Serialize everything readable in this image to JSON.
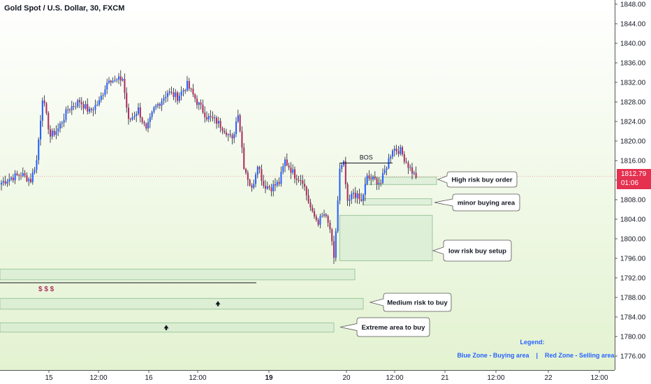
{
  "header": {
    "title": "Gold Spot / U.S. Dollar, 30, FXCM"
  },
  "price_tag": {
    "price": "1812.79",
    "countdown": "01:06"
  },
  "legend": {
    "title": "Legend:",
    "blue": "Blue Zone - Buying area",
    "separator": "|",
    "red": "Red Zone - Selling area"
  },
  "colors": {
    "bull": "#2962ff",
    "bear": "#b03060",
    "zone_stroke": "#9fc79f",
    "zone_fill": "#d2ead0",
    "accent": "#e53150"
  },
  "chart_data": {
    "type": "candlestick",
    "symbol": "Gold Spot / U.S. Dollar",
    "timeframe": "30",
    "source": "FXCM",
    "y_axis": {
      "ticks": [
        1848,
        1844,
        1840,
        1836,
        1832,
        1828,
        1824,
        1820,
        1816,
        1812,
        1808,
        1804,
        1800,
        1796,
        1792,
        1788,
        1784,
        1780,
        1776
      ],
      "tick_labels": [
        "1848.00",
        "1844.00",
        "1840.00",
        "1836.00",
        "1832.00",
        "1828.00",
        "1824.00",
        "1820.00",
        "1816.00",
        "1812.00",
        "1808.00",
        "1804.00",
        "1800.00",
        "1796.00",
        "1792.00",
        "1788.00",
        "1784.00",
        "1780.00",
        "1776.00"
      ],
      "range": [
        1773.5,
        1849.5
      ]
    },
    "x_axis": {
      "labels": [
        "15",
        "12:00",
        "16",
        "12:00",
        "19",
        "20",
        "12:00",
        "21",
        "12:00",
        "22",
        "12:00"
      ],
      "bold": [
        false,
        false,
        false,
        false,
        true,
        false,
        false,
        false,
        false,
        false,
        false
      ]
    },
    "current_price": 1812.79,
    "anchors": [
      {
        "t": 0,
        "p": 1811.5
      },
      {
        "t": 5,
        "p": 1812.5
      },
      {
        "t": 10,
        "p": 1813.2
      },
      {
        "t": 15,
        "p": 1812.0
      },
      {
        "t": 18,
        "p": 1816.0
      },
      {
        "t": 21,
        "p": 1829.0
      },
      {
        "t": 25,
        "p": 1821.0
      },
      {
        "t": 29,
        "p": 1822.5
      },
      {
        "t": 34,
        "p": 1826.5
      },
      {
        "t": 40,
        "p": 1828.2
      },
      {
        "t": 45,
        "p": 1826.0
      },
      {
        "t": 50,
        "p": 1828.0
      },
      {
        "t": 55,
        "p": 1833.0
      },
      {
        "t": 58,
        "p": 1832.2
      },
      {
        "t": 62,
        "p": 1832.8
      },
      {
        "t": 65,
        "p": 1824.0
      },
      {
        "t": 70,
        "p": 1826.5
      },
      {
        "t": 74,
        "p": 1822.0
      },
      {
        "t": 78,
        "p": 1826.5
      },
      {
        "t": 85,
        "p": 1830.0
      },
      {
        "t": 90,
        "p": 1829.0
      },
      {
        "t": 95,
        "p": 1831.5
      },
      {
        "t": 100,
        "p": 1828.0
      },
      {
        "t": 105,
        "p": 1825.0
      },
      {
        "t": 110,
        "p": 1824.0
      },
      {
        "t": 115,
        "p": 1822.0
      },
      {
        "t": 118,
        "p": 1820.0
      },
      {
        "t": 121,
        "p": 1826.0
      },
      {
        "t": 124,
        "p": 1815.0
      },
      {
        "t": 128,
        "p": 1810.0
      },
      {
        "t": 131,
        "p": 1815.5
      },
      {
        "t": 134,
        "p": 1811.0
      },
      {
        "t": 138,
        "p": 1810.5
      },
      {
        "t": 142,
        "p": 1811.5
      },
      {
        "t": 145,
        "p": 1816.0
      },
      {
        "t": 150,
        "p": 1813.0
      },
      {
        "t": 154,
        "p": 1812.0
      },
      {
        "t": 156,
        "p": 1809.0
      },
      {
        "t": 159,
        "p": 1805.0
      },
      {
        "t": 162,
        "p": 1803.5
      },
      {
        "t": 165,
        "p": 1805.0
      },
      {
        "t": 168,
        "p": 1802.0
      },
      {
        "t": 170,
        "p": 1795.5
      },
      {
        "t": 173,
        "p": 1814.0
      },
      {
        "t": 175,
        "p": 1815.2
      },
      {
        "t": 177,
        "p": 1807.0
      },
      {
        "t": 180,
        "p": 1809.5
      },
      {
        "t": 184,
        "p": 1807.5
      },
      {
        "t": 187,
        "p": 1812.5
      },
      {
        "t": 191,
        "p": 1812.0
      },
      {
        "t": 194,
        "p": 1811.5
      },
      {
        "t": 197,
        "p": 1815.0
      },
      {
        "t": 200,
        "p": 1818.5
      },
      {
        "t": 204,
        "p": 1818.0
      },
      {
        "t": 208,
        "p": 1815.0
      },
      {
        "t": 212,
        "p": 1812.5
      }
    ],
    "zones": [
      {
        "from": "t186",
        "to_x": 625,
        "top": 1812.6,
        "bottom": 1811.1
      },
      {
        "from": "t185",
        "to_x": 618,
        "top": 1808.2,
        "bottom": 1806.9
      },
      {
        "from": "t173",
        "to_x": 619,
        "top": 1804.8,
        "bottom": 1795.5
      },
      {
        "from": "left",
        "to_x": 508,
        "top": 1793.8,
        "bottom": 1791.6
      },
      {
        "from": "left",
        "to_x": 520,
        "top": 1787.8,
        "bottom": 1785.6
      },
      {
        "from": "left",
        "to_x": 478,
        "top": 1782.8,
        "bottom": 1780.9
      }
    ],
    "annotations": [
      {
        "text": "BOS",
        "kind": "line",
        "from_t": 173,
        "to_t": 200,
        "price": 1815.5
      },
      {
        "text": "$ $ $",
        "kind": "line",
        "from_t": -1,
        "to_t": 132,
        "price": 1791.0
      },
      {
        "text": "High risk buy order",
        "kind": "callout",
        "price": 1812.0
      },
      {
        "text": "minor buying area",
        "kind": "callout",
        "price": 1807.6
      },
      {
        "text": "low risk buy setup",
        "kind": "callout",
        "price": 1800.0
      },
      {
        "text": "Medium risk to buy",
        "kind": "callout",
        "price": 1786.7
      },
      {
        "text": "Extreme area to buy",
        "kind": "callout",
        "price": 1781.8
      }
    ]
  }
}
